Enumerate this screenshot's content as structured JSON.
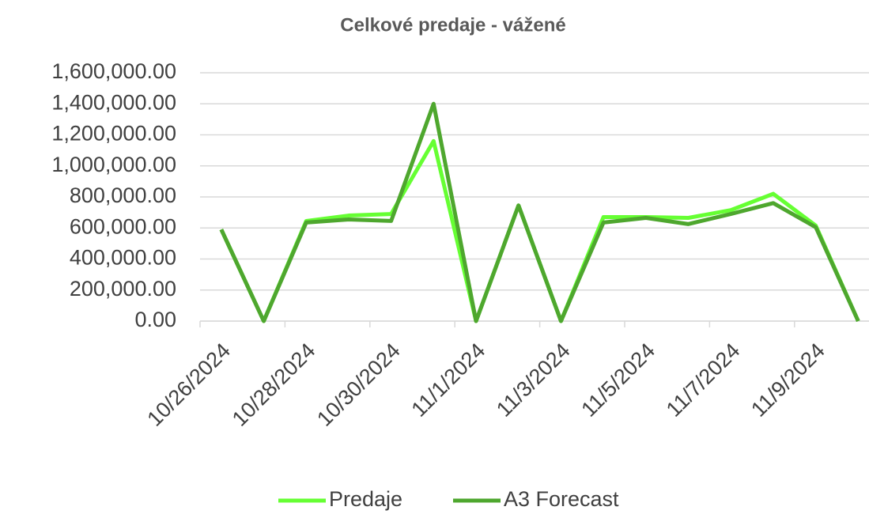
{
  "chart_data": {
    "type": "line",
    "title": "Celkové predaje - vážené",
    "categories": [
      "10/26/2024",
      null,
      "10/28/2024",
      null,
      "10/30/2024",
      null,
      "11/1/2024",
      null,
      "11/3/2024",
      null,
      "11/5/2024",
      null,
      "11/7/2024",
      null,
      "11/9/2024",
      null
    ],
    "series": [
      {
        "name": "Predaje",
        "color": "#66ff33",
        "values": [
          590000,
          0,
          645000,
          680000,
          690000,
          1160000,
          0,
          745000,
          0,
          670000,
          670000,
          665000,
          715000,
          820000,
          615000,
          0
        ]
      },
      {
        "name": "A3 Forecast",
        "color": "#4ea72e",
        "values": [
          590000,
          0,
          635000,
          655000,
          645000,
          1400000,
          0,
          745000,
          0,
          635000,
          665000,
          625000,
          690000,
          760000,
          605000,
          0
        ]
      }
    ],
    "ylim": [
      0,
      1600000
    ],
    "yticks": [
      {
        "value": 0,
        "label": "0.00"
      },
      {
        "value": 200000,
        "label": "200,000.00"
      },
      {
        "value": 400000,
        "label": "400,000.00"
      },
      {
        "value": 600000,
        "label": "600,000.00"
      },
      {
        "value": 800000,
        "label": "800,000.00"
      },
      {
        "value": 1000000,
        "label": "1,000,000.00"
      },
      {
        "value": 1200000,
        "label": "1,200,000.00"
      },
      {
        "value": 1400000,
        "label": "1,400,000.00"
      },
      {
        "value": 1600000,
        "label": "1,600,000.00"
      }
    ],
    "grid": true,
    "legend": "bottom"
  }
}
